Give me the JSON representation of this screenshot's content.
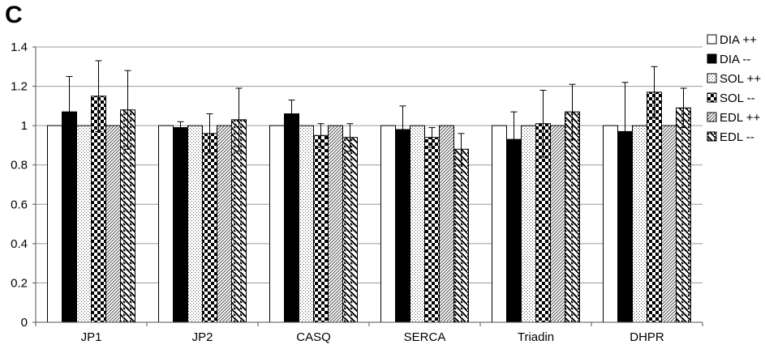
{
  "panel_label": "C",
  "chart_data": {
    "type": "bar",
    "title": "",
    "xlabel": "",
    "ylabel": "",
    "ylim": [
      0,
      1.4
    ],
    "yticks": [
      "0",
      "0.2",
      "0.4",
      "0.6",
      "0.8",
      "1",
      "1.2",
      "1.4"
    ],
    "grid": true,
    "legend_position": "right",
    "categories": [
      "JP1",
      "JP2",
      "CASQ",
      "SERCA",
      "Triadin",
      "DHPR"
    ],
    "series": [
      {
        "name": "DIA ++",
        "pattern": "white",
        "values": [
          1,
          1,
          1,
          1,
          1,
          1
        ],
        "errors": [
          0,
          0,
          0,
          0,
          0,
          0
        ]
      },
      {
        "name": "DIA --",
        "pattern": "black",
        "values": [
          1.07,
          0.99,
          1.06,
          0.98,
          0.93,
          0.97
        ],
        "errors": [
          0.18,
          0.03,
          0.07,
          0.12,
          0.14,
          0.25
        ]
      },
      {
        "name": "SOL ++",
        "pattern": "dots",
        "values": [
          1,
          1,
          1,
          1,
          1,
          1
        ],
        "errors": [
          0,
          0,
          0,
          0,
          0,
          0
        ]
      },
      {
        "name": "SOL --",
        "pattern": "checker",
        "values": [
          1.15,
          0.96,
          0.95,
          0.94,
          1.01,
          1.17
        ],
        "errors": [
          0.18,
          0.1,
          0.06,
          0.05,
          0.17,
          0.13
        ]
      },
      {
        "name": "EDL ++",
        "pattern": "diag",
        "values": [
          1,
          1,
          1,
          1,
          1,
          1
        ],
        "errors": [
          0,
          0,
          0,
          0,
          0,
          0
        ]
      },
      {
        "name": "EDL --",
        "pattern": "bigdiag",
        "values": [
          1.08,
          1.03,
          0.94,
          0.88,
          1.07,
          1.09
        ],
        "errors": [
          0.2,
          0.16,
          0.07,
          0.08,
          0.14,
          0.1
        ]
      }
    ]
  }
}
